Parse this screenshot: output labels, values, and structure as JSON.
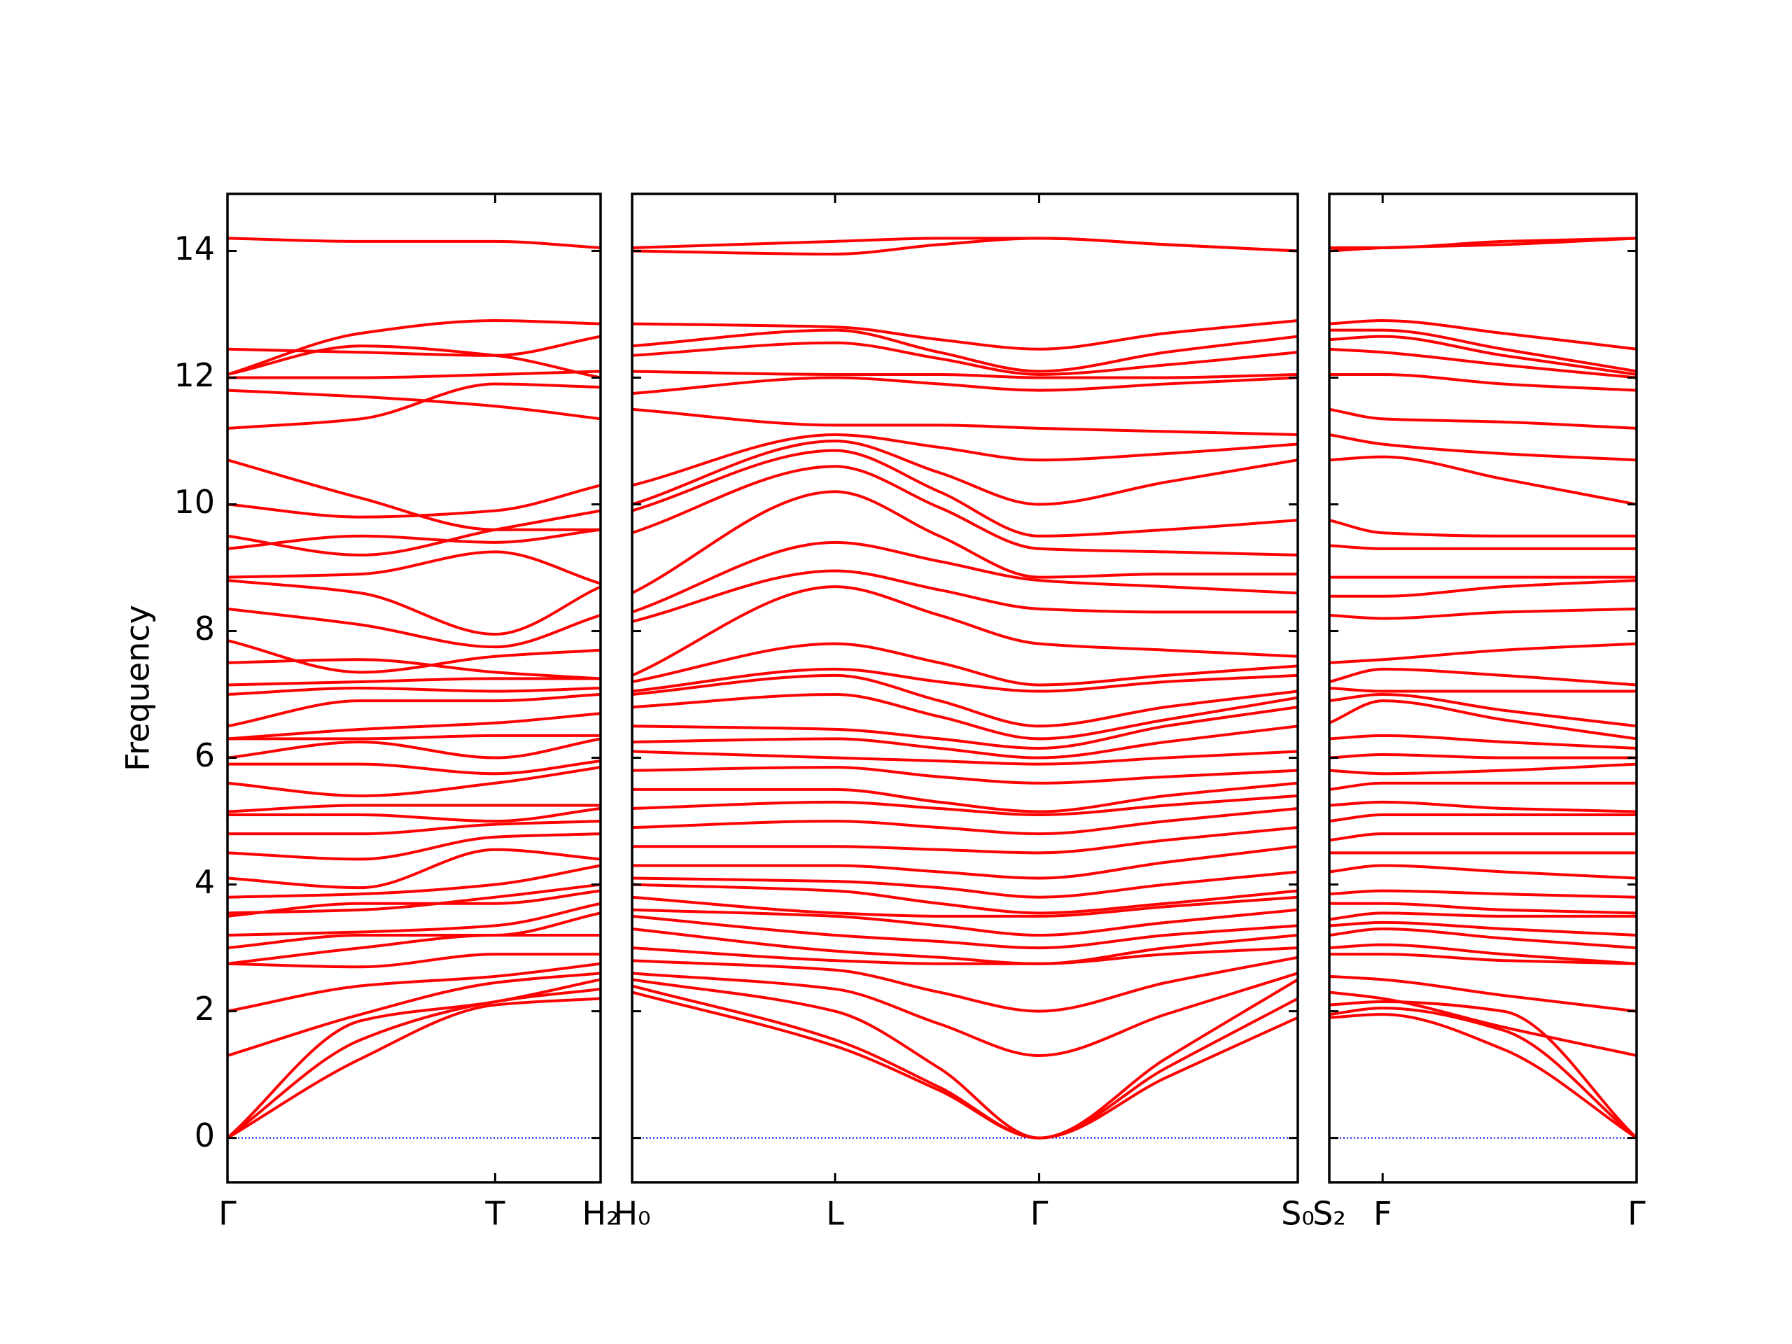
{
  "chart_data": [
    {
      "type": "line",
      "ylabel": "Frequency",
      "color": "#ff0000",
      "zero_line_color": "#0000ff",
      "ytick_labels": true,
      "xlim": [
        0,
        3.22
      ],
      "xticks": [
        {
          "value": 0,
          "label": "Γ"
        },
        {
          "value": 2.31,
          "label": "T"
        },
        {
          "value": 3.22,
          "label": "H₂"
        }
      ],
      "ylim": [
        -0.7,
        14.9
      ],
      "yticks": [
        0,
        2,
        4,
        6,
        8,
        10,
        12,
        14
      ],
      "x": [
        0,
        1.15,
        2.31,
        3.22
      ],
      "series": [
        {
          "values": [
            0,
            1.25,
            2.1,
            2.2
          ]
        },
        {
          "values": [
            0,
            1.55,
            2.15,
            2.35
          ]
        },
        {
          "values": [
            0,
            1.85,
            2.15,
            2.5
          ]
        },
        {
          "values": [
            1.3,
            1.95,
            2.45,
            2.6
          ]
        },
        {
          "values": [
            2.0,
            2.4,
            2.55,
            2.75
          ]
        },
        {
          "values": [
            2.75,
            2.7,
            2.9,
            2.9
          ]
        },
        {
          "values": [
            2.75,
            3.0,
            3.2,
            3.2
          ]
        },
        {
          "values": [
            3.0,
            3.2,
            3.2,
            3.55
          ]
        },
        {
          "values": [
            3.2,
            3.25,
            3.35,
            3.7
          ]
        },
        {
          "values": [
            3.5,
            3.7,
            3.7,
            3.9
          ]
        },
        {
          "values": [
            3.55,
            3.6,
            3.8,
            4.0
          ]
        },
        {
          "values": [
            3.8,
            3.85,
            4.0,
            4.3
          ]
        },
        {
          "values": [
            4.1,
            3.95,
            4.55,
            4.4
          ]
        },
        {
          "values": [
            4.5,
            4.4,
            4.75,
            4.8
          ]
        },
        {
          "values": [
            4.8,
            4.8,
            4.95,
            5.0
          ]
        },
        {
          "values": [
            5.1,
            5.1,
            5.0,
            5.2
          ]
        },
        {
          "values": [
            5.15,
            5.25,
            5.25,
            5.25
          ]
        },
        {
          "values": [
            5.6,
            5.4,
            5.6,
            5.85
          ]
        },
        {
          "values": [
            5.9,
            5.9,
            5.75,
            5.95
          ]
        },
        {
          "values": [
            6.0,
            6.25,
            6.0,
            6.3
          ]
        },
        {
          "values": [
            6.3,
            6.3,
            6.35,
            6.35
          ]
        },
        {
          "values": [
            6.3,
            6.45,
            6.55,
            6.7
          ]
        },
        {
          "values": [
            6.5,
            6.9,
            6.9,
            7.0
          ]
        },
        {
          "values": [
            7.0,
            7.1,
            7.05,
            7.1
          ]
        },
        {
          "values": [
            7.15,
            7.2,
            7.25,
            7.25
          ]
        },
        {
          "values": [
            7.5,
            7.55,
            7.35,
            7.25
          ]
        },
        {
          "values": [
            7.85,
            7.35,
            7.6,
            7.7
          ]
        },
        {
          "values": [
            8.35,
            8.1,
            7.75,
            8.25
          ]
        },
        {
          "values": [
            8.8,
            8.6,
            7.95,
            8.7
          ]
        },
        {
          "values": [
            8.85,
            8.9,
            9.25,
            8.75
          ]
        },
        {
          "values": [
            9.3,
            9.5,
            9.4,
            9.6
          ]
        },
        {
          "values": [
            9.5,
            9.2,
            9.6,
            9.9
          ]
        },
        {
          "values": [
            10.0,
            9.8,
            9.9,
            10.3
          ]
        },
        {
          "values": [
            10.7,
            10.1,
            9.6,
            9.6
          ]
        },
        {
          "values": [
            11.2,
            11.35,
            11.9,
            11.85
          ]
        },
        {
          "values": [
            11.8,
            11.7,
            11.55,
            11.35
          ]
        },
        {
          "values": [
            12.0,
            12.0,
            12.05,
            12.1
          ]
        },
        {
          "values": [
            12.05,
            12.5,
            12.35,
            12.0
          ]
        },
        {
          "values": [
            12.45,
            12.4,
            12.35,
            12.65
          ]
        },
        {
          "values": [
            12.05,
            12.7,
            12.9,
            12.85
          ]
        },
        {
          "values": [
            14.2,
            14.15,
            14.15,
            14.05
          ]
        }
      ]
    },
    {
      "type": "line",
      "color": "#ff0000",
      "zero_line_color": "#0000ff",
      "ytick_labels": false,
      "xlim": [
        0,
        5.74
      ],
      "xticks": [
        {
          "value": 0,
          "label": "H₀"
        },
        {
          "value": 1.75,
          "label": "L"
        },
        {
          "value": 3.51,
          "label": "Γ"
        },
        {
          "value": 5.74,
          "label": "S₀"
        }
      ],
      "ylim": [
        -0.7,
        14.9
      ],
      "yticks": [
        0,
        2,
        4,
        6,
        8,
        10,
        12,
        14
      ],
      "x": [
        0,
        1.75,
        2.65,
        3.51,
        4.6,
        5.74
      ],
      "series": [
        {
          "values": [
            2.3,
            1.45,
            0.75,
            0,
            0.95,
            1.9
          ]
        },
        {
          "values": [
            2.4,
            1.55,
            0.8,
            0,
            1.1,
            2.2
          ]
        },
        {
          "values": [
            2.5,
            2.0,
            1.1,
            0,
            1.25,
            2.5
          ]
        },
        {
          "values": [
            2.6,
            2.35,
            1.8,
            1.3,
            1.95,
            2.6
          ]
        },
        {
          "values": [
            2.8,
            2.65,
            2.3,
            2.0,
            2.45,
            2.85
          ]
        },
        {
          "values": [
            3.0,
            2.8,
            2.75,
            2.75,
            2.9,
            3.0
          ]
        },
        {
          "values": [
            3.3,
            2.95,
            2.85,
            2.75,
            3.0,
            3.2
          ]
        },
        {
          "values": [
            3.5,
            3.2,
            3.1,
            3.0,
            3.2,
            3.35
          ]
        },
        {
          "values": [
            3.6,
            3.5,
            3.35,
            3.2,
            3.4,
            3.6
          ]
        },
        {
          "values": [
            3.8,
            3.55,
            3.5,
            3.5,
            3.65,
            3.8
          ]
        },
        {
          "values": [
            4.0,
            3.9,
            3.7,
            3.55,
            3.7,
            3.9
          ]
        },
        {
          "values": [
            4.1,
            4.05,
            3.95,
            3.8,
            4.0,
            4.2
          ]
        },
        {
          "values": [
            4.3,
            4.3,
            4.2,
            4.1,
            4.35,
            4.6
          ]
        },
        {
          "values": [
            4.6,
            4.6,
            4.55,
            4.5,
            4.7,
            4.9
          ]
        },
        {
          "values": [
            4.9,
            5.0,
            4.9,
            4.8,
            5.0,
            5.2
          ]
        },
        {
          "values": [
            5.2,
            5.3,
            5.2,
            5.1,
            5.25,
            5.4
          ]
        },
        {
          "values": [
            5.5,
            5.5,
            5.3,
            5.15,
            5.4,
            5.6
          ]
        },
        {
          "values": [
            5.8,
            5.85,
            5.7,
            5.6,
            5.7,
            5.8
          ]
        },
        {
          "values": [
            6.1,
            6.0,
            5.95,
            5.9,
            6.0,
            6.1
          ]
        },
        {
          "values": [
            6.25,
            6.3,
            6.15,
            6.0,
            6.25,
            6.5
          ]
        },
        {
          "values": [
            6.5,
            6.45,
            6.3,
            6.15,
            6.5,
            6.8
          ]
        },
        {
          "values": [
            6.8,
            7.0,
            6.65,
            6.3,
            6.6,
            6.95
          ]
        },
        {
          "values": [
            7.0,
            7.3,
            6.9,
            6.5,
            6.8,
            7.05
          ]
        },
        {
          "values": [
            7.05,
            7.4,
            7.2,
            7.05,
            7.2,
            7.3
          ]
        },
        {
          "values": [
            7.2,
            7.8,
            7.5,
            7.15,
            7.3,
            7.45
          ]
        },
        {
          "values": [
            7.3,
            8.7,
            8.25,
            7.8,
            7.7,
            7.6
          ]
        },
        {
          "values": [
            8.15,
            8.95,
            8.65,
            8.35,
            8.3,
            8.3
          ]
        },
        {
          "values": [
            8.3,
            9.4,
            9.1,
            8.8,
            8.7,
            8.6
          ]
        },
        {
          "values": [
            8.6,
            10.2,
            9.5,
            8.85,
            8.9,
            8.9
          ]
        },
        {
          "values": [
            9.55,
            10.6,
            9.95,
            9.3,
            9.25,
            9.2
          ]
        },
        {
          "values": [
            9.9,
            10.85,
            10.2,
            9.5,
            9.6,
            9.75
          ]
        },
        {
          "values": [
            10.0,
            11.0,
            10.5,
            10.0,
            10.35,
            10.7
          ]
        },
        {
          "values": [
            10.3,
            11.1,
            10.9,
            10.7,
            10.8,
            10.95
          ]
        },
        {
          "values": [
            11.5,
            11.25,
            11.25,
            11.2,
            11.15,
            11.1
          ]
        },
        {
          "values": [
            11.75,
            12.0,
            11.9,
            11.8,
            11.9,
            12.0
          ]
        },
        {
          "values": [
            12.1,
            12.05,
            12.05,
            12.0,
            12.0,
            12.05
          ]
        },
        {
          "values": [
            12.35,
            12.55,
            12.3,
            12.05,
            12.2,
            12.4
          ]
        },
        {
          "values": [
            12.5,
            12.75,
            12.4,
            12.1,
            12.4,
            12.65
          ]
        },
        {
          "values": [
            12.85,
            12.8,
            12.6,
            12.45,
            12.7,
            12.9
          ]
        },
        {
          "values": [
            14.0,
            13.95,
            14.1,
            14.2,
            14.1,
            14.0
          ]
        },
        {
          "values": [
            14.05,
            14.15,
            14.2,
            14.2,
            14.1,
            14.0
          ]
        }
      ]
    },
    {
      "type": "line",
      "color": "#ff0000",
      "zero_line_color": "#0000ff",
      "ytick_labels": false,
      "xlim": [
        0,
        2.65
      ],
      "xticks": [
        {
          "value": 0,
          "label": "S₂"
        },
        {
          "value": 0.46,
          "label": "F"
        },
        {
          "value": 2.65,
          "label": "Γ"
        }
      ],
      "ylim": [
        -0.7,
        14.9
      ],
      "yticks": [
        0,
        2,
        4,
        6,
        8,
        10,
        12,
        14
      ],
      "x": [
        0,
        0.46,
        1.5,
        2.65
      ],
      "series": [
        {
          "values": [
            1.9,
            1.95,
            1.4,
            0
          ]
        },
        {
          "values": [
            1.95,
            2.05,
            1.7,
            0
          ]
        },
        {
          "values": [
            2.1,
            2.15,
            2.0,
            0
          ]
        },
        {
          "values": [
            2.3,
            2.2,
            1.75,
            1.3
          ]
        },
        {
          "values": [
            2.55,
            2.5,
            2.25,
            2.0
          ]
        },
        {
          "values": [
            2.9,
            2.9,
            2.8,
            2.75
          ]
        },
        {
          "values": [
            3.0,
            3.05,
            2.9,
            2.75
          ]
        },
        {
          "values": [
            3.2,
            3.3,
            3.15,
            3.0
          ]
        },
        {
          "values": [
            3.35,
            3.4,
            3.3,
            3.2
          ]
        },
        {
          "values": [
            3.45,
            3.55,
            3.5,
            3.5
          ]
        },
        {
          "values": [
            3.7,
            3.7,
            3.6,
            3.55
          ]
        },
        {
          "values": [
            3.85,
            3.9,
            3.85,
            3.8
          ]
        },
        {
          "values": [
            4.2,
            4.3,
            4.2,
            4.1
          ]
        },
        {
          "values": [
            4.5,
            4.5,
            4.5,
            4.5
          ]
        },
        {
          "values": [
            4.7,
            4.8,
            4.8,
            4.8
          ]
        },
        {
          "values": [
            5.0,
            5.1,
            5.1,
            5.1
          ]
        },
        {
          "values": [
            5.25,
            5.3,
            5.2,
            5.15
          ]
        },
        {
          "values": [
            5.5,
            5.6,
            5.6,
            5.6
          ]
        },
        {
          "values": [
            5.8,
            5.75,
            5.8,
            5.9
          ]
        },
        {
          "values": [
            6.0,
            6.05,
            6.0,
            6.0
          ]
        },
        {
          "values": [
            6.3,
            6.35,
            6.25,
            6.15
          ]
        },
        {
          "values": [
            6.55,
            6.9,
            6.6,
            6.3
          ]
        },
        {
          "values": [
            6.9,
            7.0,
            6.75,
            6.5
          ]
        },
        {
          "values": [
            7.1,
            7.05,
            7.05,
            7.05
          ]
        },
        {
          "values": [
            7.2,
            7.4,
            7.3,
            7.15
          ]
        },
        {
          "values": [
            7.5,
            7.55,
            7.7,
            7.8
          ]
        },
        {
          "values": [
            8.25,
            8.2,
            8.3,
            8.35
          ]
        },
        {
          "values": [
            8.55,
            8.55,
            8.7,
            8.8
          ]
        },
        {
          "values": [
            8.85,
            8.85,
            8.85,
            8.85
          ]
        },
        {
          "values": [
            9.35,
            9.3,
            9.3,
            9.3
          ]
        },
        {
          "values": [
            9.75,
            9.55,
            9.5,
            9.5
          ]
        },
        {
          "values": [
            10.7,
            10.75,
            10.4,
            10.0
          ]
        },
        {
          "values": [
            11.1,
            10.95,
            10.8,
            10.7
          ]
        },
        {
          "values": [
            11.5,
            11.35,
            11.3,
            11.2
          ]
        },
        {
          "values": [
            12.05,
            12.05,
            11.9,
            11.8
          ]
        },
        {
          "values": [
            12.45,
            12.4,
            12.2,
            12.0
          ]
        },
        {
          "values": [
            12.6,
            12.65,
            12.35,
            12.05
          ]
        },
        {
          "values": [
            12.75,
            12.75,
            12.45,
            12.1
          ]
        },
        {
          "values": [
            12.85,
            12.9,
            12.7,
            12.45
          ]
        },
        {
          "values": [
            14.0,
            14.05,
            14.1,
            14.2
          ]
        },
        {
          "values": [
            14.05,
            14.05,
            14.15,
            14.2
          ]
        }
      ]
    }
  ]
}
